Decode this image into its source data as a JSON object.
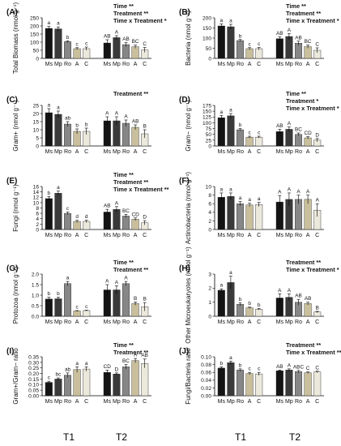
{
  "groups": [
    "T1",
    "T2"
  ],
  "colors": {
    "Ms": "#141414",
    "Mp": "#3a3a3a",
    "Ro": "#878787",
    "A": "#c9bf9c",
    "C": "#ebe8dc"
  },
  "chart_data": [
    {
      "type": "bar",
      "panel": "(A)",
      "ylabel": "Total Biomass (nmol g⁻¹)",
      "ylim": [
        0,
        250
      ],
      "ticks": [
        "0",
        "50",
        "100",
        "150",
        "200",
        "250"
      ],
      "tickvals": [
        0,
        50,
        100,
        150,
        200,
        250
      ],
      "stats": [
        "Time **",
        "Treatment **",
        "Time x Treatment *"
      ],
      "categories": [
        "Ms",
        "Mp",
        "Ro",
        "A",
        "C"
      ],
      "series": [
        {
          "group": "T1",
          "values": [
            185,
            182,
            103,
            60,
            60
          ],
          "errors": [
            12,
            12,
            5,
            6,
            10
          ],
          "letters": [
            "a",
            "a",
            "b",
            "c",
            "c"
          ]
        },
        {
          "group": "T2",
          "values": [
            95,
            128,
            85,
            72,
            52
          ],
          "errors": [
            20,
            12,
            12,
            10,
            15
          ],
          "letters": [
            "AB",
            "A",
            "AB",
            "BC",
            "C"
          ]
        }
      ]
    },
    {
      "type": "bar",
      "panel": "(B)",
      "ylabel": "Bacteria (nmol g⁻¹)",
      "ylim": [
        0,
        200
      ],
      "ticks": [
        "0",
        "50",
        "100",
        "150",
        "200"
      ],
      "tickvals": [
        0,
        50,
        100,
        150,
        200
      ],
      "stats": [
        "Time **",
        "Treatment **",
        "Time x Treatment *"
      ],
      "categories": [
        "Ms",
        "Mp",
        "Ro",
        "A",
        "C"
      ],
      "series": [
        {
          "group": "T1",
          "values": [
            160,
            156,
            88,
            48,
            48
          ],
          "errors": [
            10,
            12,
            5,
            5,
            6
          ],
          "letters": [
            "a",
            "a",
            "b",
            "c",
            "c"
          ]
        },
        {
          "group": "T2",
          "values": [
            97,
            108,
            75,
            58,
            40
          ],
          "errors": [
            10,
            15,
            10,
            8,
            12
          ],
          "letters": [
            "AB",
            "A",
            "AB",
            "BC",
            "C"
          ]
        }
      ]
    },
    {
      "type": "bar",
      "panel": "(C)",
      "ylabel": "Gram+ (nmol g⁻¹)",
      "ylim": [
        0,
        25
      ],
      "ticks": [
        "0",
        "5",
        "10",
        "15",
        "20",
        "25"
      ],
      "tickvals": [
        0,
        5,
        10,
        15,
        20,
        25
      ],
      "stats": [
        "Treatment **"
      ],
      "categories": [
        "Ms",
        "Mp",
        "Ro",
        "A",
        "C"
      ],
      "series": [
        {
          "group": "T1",
          "values": [
            20.5,
            19.5,
            13.5,
            9.0,
            9.0
          ],
          "errors": [
            2.5,
            2.0,
            1.5,
            1.5,
            2.0
          ],
          "letters": [
            "a",
            "a",
            "ab",
            "b",
            "b"
          ]
        },
        {
          "group": "T2",
          "values": [
            15.5,
            15.5,
            14.0,
            11.5,
            7.5
          ],
          "errors": [
            2.5,
            2.5,
            2.0,
            1.5,
            2.5
          ],
          "letters": [
            "A",
            "A",
            "A",
            "AB",
            "B"
          ]
        }
      ]
    },
    {
      "type": "bar",
      "panel": "(D)",
      "ylabel": "Gram− (nmol g⁻¹)",
      "ylim": [
        0,
        175
      ],
      "ticks": [
        "0",
        "25",
        "50",
        "75",
        "100",
        "125",
        "150",
        "175"
      ],
      "tickvals": [
        0,
        25,
        50,
        75,
        100,
        125,
        150,
        175
      ],
      "stats": [
        "Time **",
        "Treatment *",
        "Time x Treatment *"
      ],
      "categories": [
        "Ms",
        "Mp",
        "Ro",
        "A",
        "C"
      ],
      "series": [
        {
          "group": "T1",
          "values": [
            122,
            130,
            70,
            38,
            38
          ],
          "errors": [
            10,
            10,
            5,
            4,
            4
          ],
          "letters": [
            "a",
            "a",
            "b",
            "c",
            "c"
          ]
        },
        {
          "group": "T2",
          "values": [
            62,
            72,
            50,
            35,
            25
          ],
          "errors": [
            10,
            10,
            6,
            5,
            7
          ],
          "letters": [
            "AB",
            "A",
            "BC",
            "CD",
            "D"
          ]
        }
      ]
    },
    {
      "type": "bar",
      "panel": "(E)",
      "ylabel": "Fungi (nmol g⁻¹)",
      "ylim": [
        0,
        16
      ],
      "ticks": [
        "0",
        "2",
        "4",
        "6",
        "8",
        "10",
        "12",
        "14",
        "16"
      ],
      "tickvals": [
        0,
        2,
        4,
        6,
        8,
        10,
        12,
        14,
        16
      ],
      "stats": [
        "Time **",
        "Treatment **",
        "Time x Treatment **"
      ],
      "categories": [
        "Ms",
        "Mp",
        "Ro",
        "A",
        "C"
      ],
      "series": [
        {
          "group": "T1",
          "values": [
            11.5,
            13.5,
            6.0,
            3.0,
            3.0
          ],
          "errors": [
            0.8,
            0.8,
            0.5,
            0.4,
            0.4
          ],
          "letters": [
            "b",
            "a",
            "c",
            "d",
            "d"
          ]
        },
        {
          "group": "T2",
          "values": [
            6.5,
            7.5,
            5.0,
            3.8,
            2.5
          ],
          "errors": [
            1.0,
            1.0,
            0.6,
            0.5,
            0.8
          ],
          "letters": [
            "AB",
            "A",
            "BC",
            "CD",
            "D"
          ]
        }
      ]
    },
    {
      "type": "bar",
      "panel": "(F)",
      "ylabel": "Actinobacteria (nmol g⁻¹)",
      "ylim": [
        0,
        10
      ],
      "ticks": [
        "0",
        "2",
        "4",
        "6",
        "8",
        "10"
      ],
      "tickvals": [
        0,
        2,
        4,
        6,
        8,
        10
      ],
      "stats": [],
      "categories": [
        "Ms",
        "Mp",
        "Ro",
        "A",
        "C"
      ],
      "series": [
        {
          "group": "T1",
          "values": [
            7.5,
            7.7,
            6.0,
            5.7,
            5.8
          ],
          "errors": [
            1.0,
            0.8,
            0.5,
            0.4,
            0.5
          ],
          "letters": [
            "a",
            "a",
            "a",
            "a",
            "a"
          ]
        },
        {
          "group": "T2",
          "values": [
            6.4,
            7.0,
            7.0,
            7.0,
            4.5
          ],
          "errors": [
            1.5,
            1.5,
            1.0,
            1.0,
            1.5
          ],
          "letters": [
            "A",
            "A",
            "A",
            "A",
            "A"
          ]
        }
      ]
    },
    {
      "type": "bar",
      "panel": "(G)",
      "ylabel": "Protozoa (nmol g⁻¹)",
      "ylim": [
        0,
        2.0
      ],
      "ticks": [
        "0.0",
        "0.5",
        "1.0",
        "1.5",
        "2.0"
      ],
      "tickvals": [
        0,
        0.5,
        1.0,
        1.5,
        2.0
      ],
      "stats": [
        "Time **",
        "Treatment **"
      ],
      "categories": [
        "Ms",
        "Mp",
        "Ro",
        "A",
        "C"
      ],
      "series": [
        {
          "group": "T1",
          "values": [
            0.82,
            0.83,
            1.55,
            0.25,
            0.27
          ],
          "errors": [
            0.08,
            0.08,
            0.1,
            0.02,
            0.02
          ],
          "letters": [
            "b",
            "b",
            "a",
            "c",
            "c"
          ]
        },
        {
          "group": "T2",
          "values": [
            1.25,
            1.25,
            1.55,
            0.6,
            0.45
          ],
          "errors": [
            0.25,
            0.2,
            0.1,
            0.08,
            0.2
          ],
          "letters": [
            "A",
            "A",
            "A",
            "B",
            "B"
          ]
        }
      ]
    },
    {
      "type": "bar",
      "panel": "(H)",
      "ylabel": "Other Microeukaryotes (nmol g⁻¹)",
      "ylim": [
        0,
        3
      ],
      "ticks": [
        "0",
        "1",
        "2",
        "3"
      ],
      "tickvals": [
        0,
        1,
        2,
        3
      ],
      "stats": [
        "Treatment **",
        "Time x Treatment *"
      ],
      "categories": [
        "Ms",
        "Mp",
        "Ro",
        "A",
        "C"
      ],
      "series": [
        {
          "group": "T1",
          "values": [
            1.85,
            2.4,
            0.85,
            0.6,
            0.5
          ],
          "errors": [
            0.1,
            0.45,
            0.1,
            0.05,
            0.05
          ],
          "letters": [
            "a",
            "a",
            "b",
            "b",
            "b"
          ]
        },
        {
          "group": "T2",
          "values": [
            1.3,
            1.35,
            1.0,
            0.9,
            0.3
          ],
          "errors": [
            0.3,
            0.25,
            0.2,
            0.1,
            0.05
          ],
          "letters": [
            "A",
            "A",
            "AB",
            "AB",
            "B"
          ]
        }
      ]
    },
    {
      "type": "bar",
      "panel": "(I)",
      "ylabel": "Gram+/Gram− ratio",
      "ylim": [
        0,
        0.35
      ],
      "ticks": [
        "0.00",
        "0.05",
        "0.10",
        "0.15",
        "0.20",
        "0.25",
        "0.30",
        "0.35"
      ],
      "tickvals": [
        0,
        0.05,
        0.1,
        0.15,
        0.2,
        0.25,
        0.3,
        0.35
      ],
      "stats": [
        "Time **",
        "Treatment **"
      ],
      "categories": [
        "Ms",
        "Mp",
        "Ro",
        "A",
        "C"
      ],
      "series": [
        {
          "group": "T1",
          "values": [
            0.12,
            0.15,
            0.185,
            0.235,
            0.24
          ],
          "errors": [
            0.01,
            0.01,
            0.02,
            0.025,
            0.02
          ],
          "letters": [
            "c",
            "bc",
            "ab",
            "a",
            "a"
          ]
        },
        {
          "group": "T2",
          "values": [
            0.21,
            0.195,
            0.26,
            0.315,
            0.29
          ],
          "errors": [
            0.02,
            0.01,
            0.02,
            0.02,
            0.04
          ],
          "letters": [
            "CD",
            "D",
            "BC",
            "A",
            "AB"
          ]
        }
      ]
    },
    {
      "type": "bar",
      "panel": "(J)",
      "ylabel": "Fungi/Bacteria ratio",
      "ylim": [
        0,
        0.1
      ],
      "ticks": [
        "0.00",
        "0.02",
        "0.04",
        "0.06",
        "0.08",
        "0.10"
      ],
      "tickvals": [
        0,
        0.02,
        0.04,
        0.06,
        0.08,
        0.1
      ],
      "stats": [
        "Treatment **",
        "Time x Treatment **"
      ],
      "categories": [
        "Ms",
        "Mp",
        "Ro",
        "A",
        "C"
      ],
      "series": [
        {
          "group": "T1",
          "values": [
            0.071,
            0.085,
            0.066,
            0.057,
            0.056
          ],
          "errors": [
            0.003,
            0.004,
            0.003,
            0.003,
            0.004
          ],
          "letters": [
            "b",
            "a",
            "b",
            "c",
            "c"
          ]
        },
        {
          "group": "T2",
          "values": [
            0.064,
            0.066,
            0.062,
            0.059,
            0.061
          ],
          "errors": [
            0.002,
            0.003,
            0.003,
            0.002,
            0.002
          ],
          "letters": [
            "AB",
            "A",
            "ABC",
            "C",
            "C"
          ]
        }
      ]
    }
  ]
}
